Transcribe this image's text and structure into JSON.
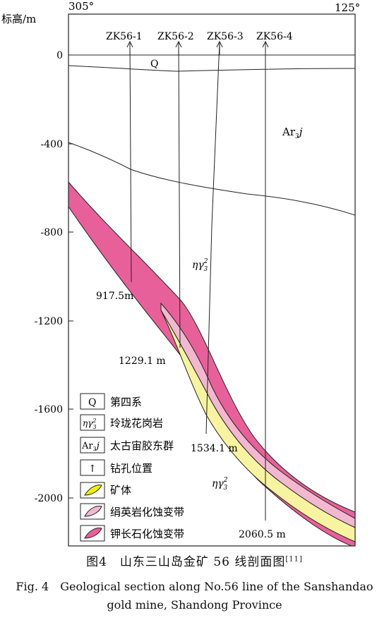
{
  "header": {
    "left_azimuth": "305°",
    "right_azimuth": "125°",
    "y_axis_title": "标高/m"
  },
  "y_ticks": [
    "0",
    "-400",
    "-800",
    "-1200",
    "-1600",
    "-2000"
  ],
  "boreholes": [
    {
      "name": "ZK56-1",
      "depth_label": "917.5m"
    },
    {
      "name": "ZK56-2",
      "depth_label": "1229.1 m"
    },
    {
      "name": "ZK56-3",
      "depth_label": "1534.1 m"
    },
    {
      "name": "ZK56-4",
      "depth_label": "2060.5 m"
    }
  ],
  "unit_labels": {
    "quaternary": "Q",
    "archean_main": "Ar",
    "archean_sub": "3",
    "archean_italic": "j",
    "granite_main": "ηγ",
    "granite_sub": "3",
    "granite_sup": "2"
  },
  "legend": [
    {
      "symbol": "Q",
      "label": "第四系",
      "kind": "text"
    },
    {
      "symbol": "ηγ",
      "label": "玲珑花岗岩",
      "kind": "granite"
    },
    {
      "symbol": "Ar",
      "label": "太古宙胶东群",
      "kind": "archean"
    },
    {
      "symbol": "↑",
      "label": "钻孔位置",
      "kind": "arrow"
    },
    {
      "symbol": "",
      "label": "矿体",
      "kind": "ore"
    },
    {
      "symbol": "",
      "label": "绢英岩化蚀变带",
      "kind": "sericite"
    },
    {
      "symbol": "",
      "label": "钾长石化蚀变带",
      "kind": "kfeldspar"
    }
  ],
  "colors": {
    "kfeldspar_zone": "#e8609a",
    "sericite_zone": "#f3b8cf",
    "ore_body": "#f7f3a0",
    "ore_legend": "#eef000",
    "line": "#222222"
  },
  "caption": {
    "cn_text": "图4　山东三山岛金矿 56 线剖面图",
    "cn_ref": "[11]",
    "en_line1": "Fig. 4　Geological section along No.56 line of the Sanshandao",
    "en_line2": "gold mine, Shandong Province"
  }
}
